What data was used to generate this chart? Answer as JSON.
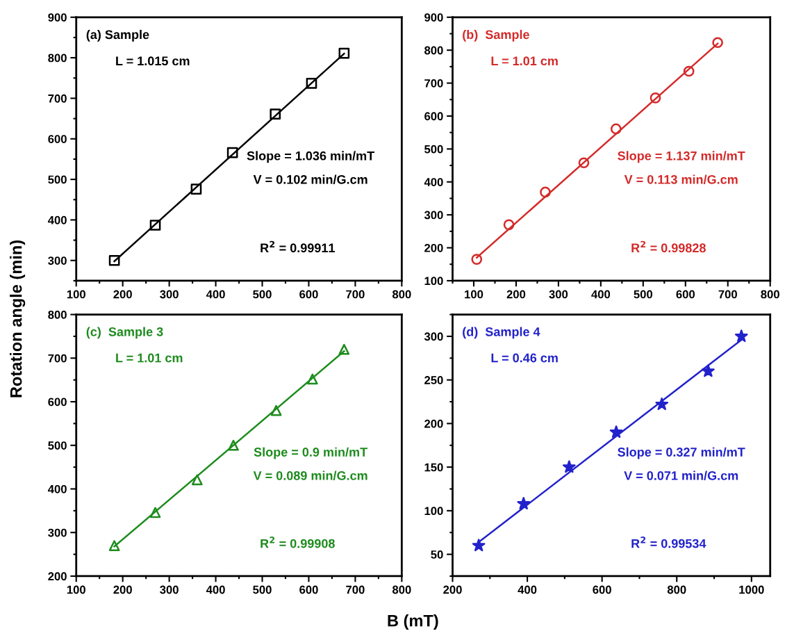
{
  "chart_data": [
    {
      "type": "scatter",
      "ylabel": "Rotation angle (min)",
      "xlim": [
        100,
        800
      ],
      "xticks": [
        100,
        200,
        300,
        400,
        500,
        600,
        700,
        800
      ],
      "ylim": [
        250,
        900
      ],
      "yticks": [
        300,
        400,
        500,
        600,
        700,
        800,
        900
      ],
      "grid": false,
      "series": [
        {
          "color": "#000000",
          "marker": "square",
          "x": [
            182,
            270,
            358,
            436,
            528,
            606,
            676
          ],
          "values": [
            300,
            387,
            476,
            566,
            661,
            737,
            811
          ]
        },
        {
          "type": "line",
          "color": "#000000",
          "marker": "none",
          "line_style": "solid",
          "x": [
            182,
            676
          ],
          "values": [
            298,
            810
          ]
        }
      ],
      "annotations": [
        "(a) Sample",
        "L = 1.015 cm",
        "Slope = 1.036 min/mT",
        "V = 0.102 min/G.cm",
        "R$^{2}$ = 0.99911"
      ]
    },
    {
      "type": "scatter",
      "xlim": [
        50,
        800
      ],
      "xticks": [
        100,
        200,
        300,
        400,
        500,
        600,
        700,
        800
      ],
      "ylim": [
        100,
        900
      ],
      "yticks": [
        100,
        200,
        300,
        400,
        500,
        600,
        700,
        800,
        900
      ],
      "grid": false,
      "series": [
        {
          "color": "#d42a2a",
          "marker": "circle",
          "x": [
            107,
            183,
            269,
            360,
            436,
            529,
            608,
            676
          ],
          "values": [
            165,
            270,
            369,
            458,
            561,
            655,
            736,
            823
          ]
        },
        {
          "type": "line",
          "color": "#d42a2a",
          "marker": "none",
          "line_style": "solid",
          "x": [
            107,
            676
          ],
          "values": [
            170,
            820
          ]
        }
      ],
      "annotations": [
        "(b)  Sample",
        "L = 1.01 cm",
        "Slope = 1.137 min/mT",
        "V = 0.113 min/G.cm",
        "R$^{2}$ = 0.99828"
      ]
    },
    {
      "type": "scatter",
      "xlabel": "B (mT)",
      "xlim": [
        100,
        800
      ],
      "xticks": [
        100,
        200,
        300,
        400,
        500,
        600,
        700,
        800
      ],
      "ylim": [
        200,
        800
      ],
      "yticks": [
        200,
        300,
        400,
        500,
        600,
        700,
        800
      ],
      "grid": false,
      "series": [
        {
          "color": "#1e8c1e",
          "marker": "triangle",
          "x": [
            182,
            270,
            360,
            438,
            530,
            608,
            676
          ],
          "values": [
            270,
            346,
            421,
            500,
            580,
            652,
            720
          ]
        },
        {
          "type": "line",
          "color": "#1e8c1e",
          "marker": "none",
          "line_style": "solid",
          "x": [
            182,
            676
          ],
          "values": [
            268,
            716
          ]
        }
      ],
      "annotations": [
        "(c)  Sample 3",
        "L = 1.01 cm",
        "Slope = 0.9 min/mT",
        "V = 0.089 min/G.cm",
        "R$^{2}$ = 0.99908"
      ]
    },
    {
      "type": "scatter",
      "xlim": [
        200,
        1050
      ],
      "xticks": [
        200,
        400,
        600,
        800,
        1000
      ],
      "ylim": [
        25,
        325
      ],
      "yticks": [
        50,
        100,
        150,
        200,
        250,
        300
      ],
      "grid": false,
      "series": [
        {
          "color": "#2222cc",
          "marker": "star",
          "x": [
            270,
            390,
            512,
            638,
            760,
            884,
            973
          ],
          "values": [
            60,
            108,
            150,
            190,
            222,
            260,
            300
          ]
        },
        {
          "type": "line",
          "color": "#2222cc",
          "marker": "none",
          "line_style": "solid",
          "x": [
            270,
            973
          ],
          "values": [
            64,
            296
          ]
        }
      ],
      "annotations": [
        "(d)  Sample 4",
        "L = 0.46 cm",
        "Slope = 0.327 min/mT",
        "V = 0.071 min/G.cm",
        "R$^{2}$ = 0.99534"
      ]
    }
  ]
}
